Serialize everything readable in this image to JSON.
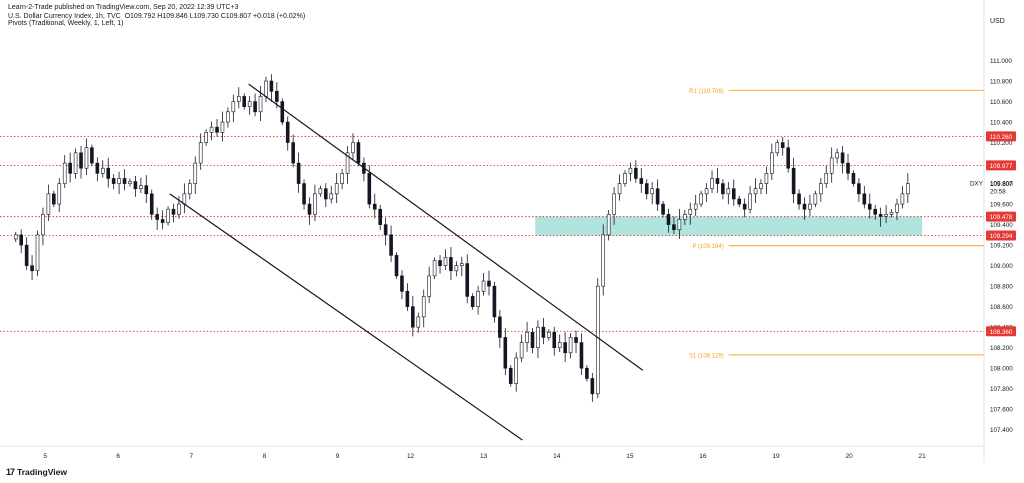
{
  "header": {
    "publisher_line": "Learn-2-Trade published on TradingView.com, Sep 20, 2022 12:39 UTC+3",
    "instrument": "U.S. Dollar Currency Index, 1h, TVC",
    "ohlc": "O109.792  H109.846  L109.730  C109.807  +0.018 (+0.02%)",
    "indicator": "Pivots (Traditional, Weekly, 1, Left, 1)"
  },
  "currency_label": "USD",
  "brand": {
    "name": "TradingView",
    "mark": "17"
  },
  "colors": {
    "bull": "#131722",
    "bear": "#131722",
    "pivot": "#f7a21b",
    "level": "#e53935",
    "zone": "#8fd9d1",
    "channel": "#131722",
    "label_bg": "#e53935"
  },
  "chart_data": {
    "type": "candlestick",
    "symbol": "DXY",
    "timeframe": "1h",
    "ylim": [
      107.3,
      111.2
    ],
    "y_ticks": [
      111.0,
      110.8,
      110.6,
      110.4,
      110.2,
      110.0,
      109.8,
      109.6,
      109.4,
      109.2,
      109.0,
      108.8,
      108.6,
      108.4,
      108.2,
      108.0,
      107.8,
      107.6,
      107.4
    ],
    "x_ticks": [
      {
        "label": "5",
        "t": 0.06
      },
      {
        "label": "6",
        "t": 1.08
      },
      {
        "label": "7",
        "t": 2.1
      },
      {
        "label": "8",
        "t": 3.12
      },
      {
        "label": "9",
        "t": 4.14
      },
      {
        "label": "12",
        "t": 5.16
      },
      {
        "label": "13",
        "t": 6.18
      },
      {
        "label": "14",
        "t": 7.2
      },
      {
        "label": "15",
        "t": 8.22
      },
      {
        "label": "16",
        "t": 9.24
      },
      {
        "label": "19",
        "t": 10.26
      },
      {
        "label": "20",
        "t": 11.28
      },
      {
        "label": "21",
        "t": 12.3
      }
    ],
    "x_range": [
      -0.5,
      12.8
    ],
    "price_label": {
      "symbol": "DXY",
      "price": "109.807",
      "countdown": "20:58"
    },
    "horizontal_levels": [
      {
        "name": "level-110260",
        "value": 110.26,
        "label": "110.260"
      },
      {
        "name": "level-109977",
        "value": 109.977,
        "label": "109.977"
      },
      {
        "name": "level-109478",
        "value": 109.478,
        "label": "109.478"
      },
      {
        "name": "level-109294",
        "value": 109.294,
        "label": "109.294"
      },
      {
        "name": "level-108360",
        "value": 108.36,
        "label": "108.360"
      }
    ],
    "pivots": [
      {
        "name": "R1",
        "value": 110.709,
        "label": "R1 (110.709)"
      },
      {
        "name": "P",
        "value": 109.194,
        "label": "P (109.194)"
      },
      {
        "name": "S1",
        "value": 108.129,
        "label": "S1 (108.129)"
      }
    ],
    "pivot_start_t": 9.6,
    "support_zone": {
      "t_start": 6.9,
      "t_end": 12.3,
      "low": 109.294,
      "high": 109.478
    },
    "channel_lines": [
      {
        "name": "channel-upper",
        "t1": 2.9,
        "y1": 110.77,
        "t2": 8.4,
        "y2": 107.98
      },
      {
        "name": "channel-lower",
        "t1": 1.8,
        "y1": 109.7,
        "t2": 6.72,
        "y2": 107.3
      }
    ],
    "closes": [
      109.3,
      109.2,
      109.0,
      108.95,
      109.3,
      109.5,
      109.7,
      109.6,
      109.8,
      110.0,
      109.9,
      110.1,
      109.95,
      110.15,
      110.0,
      109.9,
      109.95,
      109.85,
      109.8,
      109.85,
      109.8,
      109.82,
      109.75,
      109.78,
      109.7,
      109.5,
      109.45,
      109.42,
      109.55,
      109.5,
      109.6,
      109.7,
      109.8,
      110.0,
      110.2,
      110.3,
      110.35,
      110.3,
      110.4,
      110.5,
      110.6,
      110.65,
      110.55,
      110.6,
      110.5,
      110.65,
      110.8,
      110.7,
      110.6,
      110.4,
      110.2,
      110.0,
      109.8,
      109.6,
      109.5,
      109.7,
      109.75,
      109.65,
      109.7,
      109.8,
      109.9,
      110.1,
      110.2,
      110.0,
      109.9,
      109.6,
      109.55,
      109.4,
      109.3,
      109.1,
      108.9,
      108.75,
      108.6,
      108.4,
      108.5,
      108.7,
      108.9,
      109.05,
      109.0,
      109.08,
      108.95,
      109.0,
      109.02,
      108.7,
      108.6,
      108.75,
      108.85,
      108.8,
      108.5,
      108.3,
      108.0,
      107.85,
      108.1,
      108.25,
      108.35,
      108.2,
      108.4,
      108.3,
      108.35,
      108.2,
      108.25,
      108.15,
      108.3,
      108.25,
      108.0,
      107.9,
      107.75,
      108.8,
      109.3,
      109.5,
      109.7,
      109.8,
      109.9,
      109.95,
      109.85,
      109.8,
      109.7,
      109.75,
      109.6,
      109.5,
      109.4,
      109.35,
      109.45,
      109.5,
      109.55,
      109.6,
      109.7,
      109.75,
      109.85,
      109.8,
      109.7,
      109.75,
      109.65,
      109.6,
      109.55,
      109.7,
      109.75,
      109.8,
      109.9,
      110.1,
      110.2,
      110.15,
      109.95,
      109.7,
      109.6,
      109.55,
      109.6,
      109.7,
      109.8,
      109.9,
      110.05,
      110.1,
      110.0,
      109.9,
      109.8,
      109.7,
      109.6,
      109.55,
      109.5,
      109.48,
      109.5,
      109.52,
      109.6,
      109.7,
      109.8
    ]
  }
}
